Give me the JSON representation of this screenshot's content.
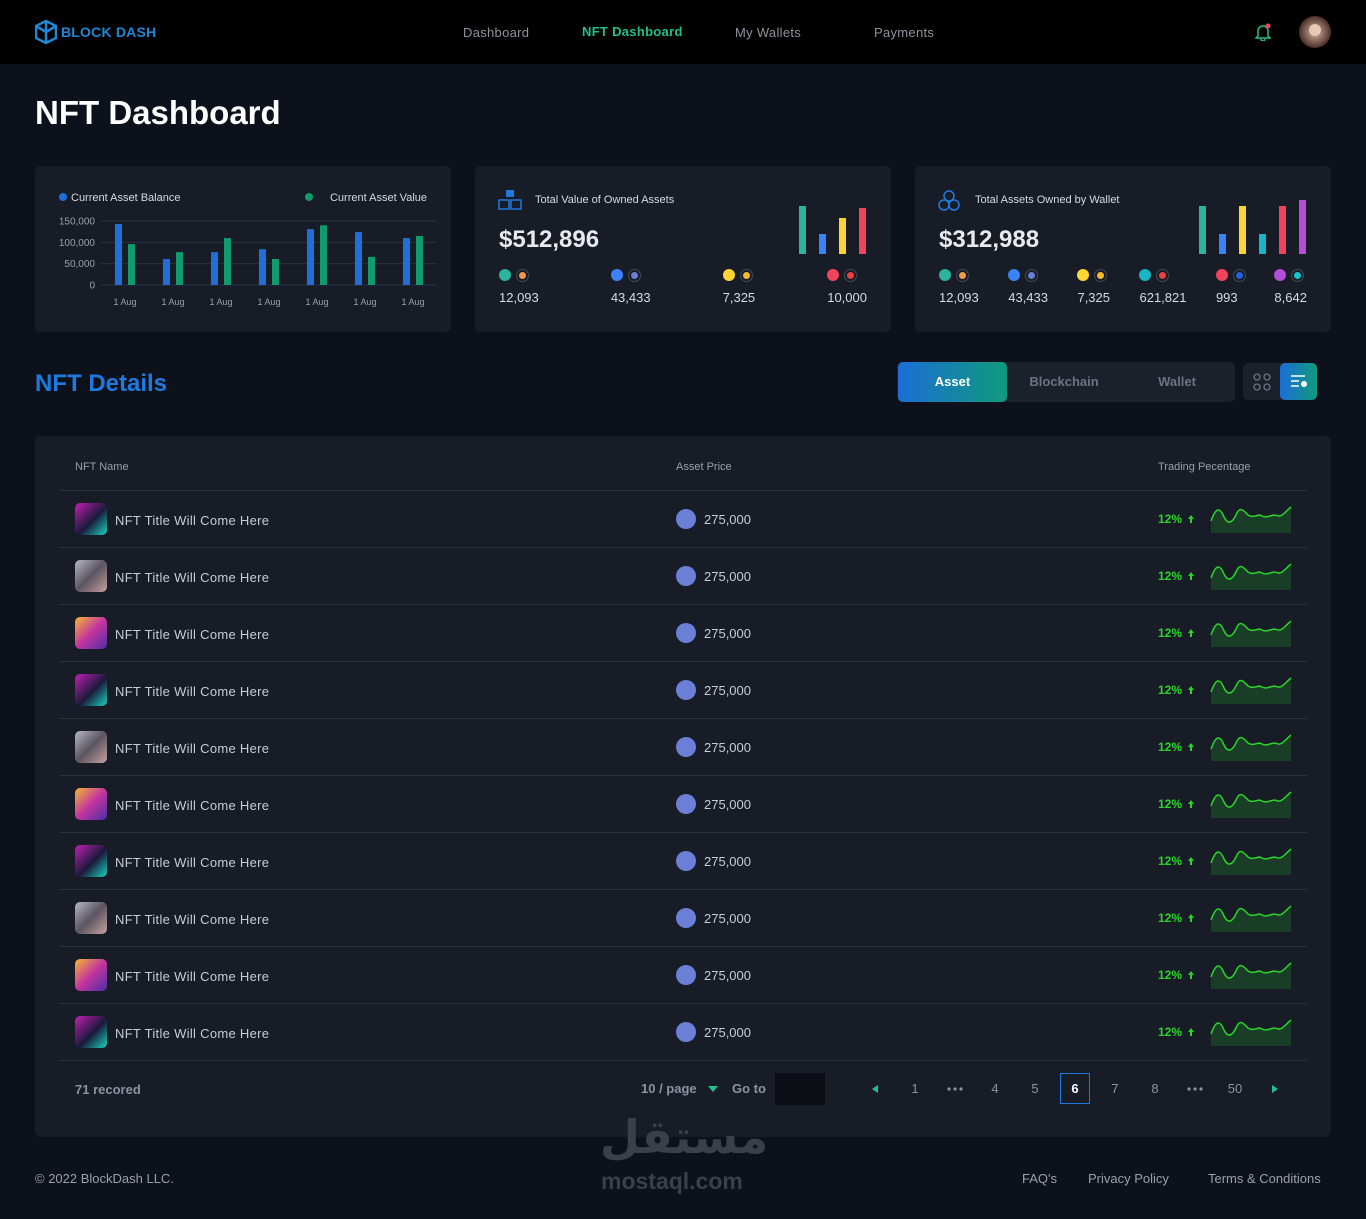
{
  "nav": {
    "brand": "BLOCK DASH",
    "links": [
      "Dashboard",
      "NFT Dashboard",
      "My Wallets",
      "Payments"
    ],
    "active": "NFT Dashboard"
  },
  "page_title": "NFT Dashboard",
  "chart_data": {
    "type": "bar",
    "categories": [
      "1 Aug",
      "1 Aug",
      "1 Aug",
      "1 Aug",
      "1 Aug",
      "1 Aug",
      "1 Aug"
    ],
    "series": [
      {
        "name": "Current Asset Balance",
        "color": "#1f6fd6",
        "values": [
          143000,
          61000,
          77000,
          84000,
          131000,
          124000,
          110000
        ]
      },
      {
        "name": "Current Asset Value",
        "color": "#0f9b6c",
        "values": [
          96000,
          77000,
          110000,
          61000,
          140000,
          66000,
          115000
        ]
      }
    ],
    "ylim": [
      0,
      150000
    ],
    "yticks": [
      0,
      {
        "value": 50000,
        "label": "50,000"
      },
      {
        "value": 100000,
        "label": "100,000"
      },
      {
        "value": 150000,
        "label": "150,000"
      }
    ],
    "grid": true
  },
  "cards": [
    {
      "title": "Total Value of Owned Assets",
      "amount": "$512,896",
      "coins": [
        {
          "color": "#2bb39e",
          "value": "12,093"
        },
        {
          "color": "#3b82f6",
          "value": "43,433"
        },
        {
          "color": "#fcd535",
          "value": "7,325"
        },
        {
          "color": "#f0445d",
          "value": "10,000"
        }
      ]
    },
    {
      "title": "Total Assets Owned by Wallet",
      "amount": "$312,988",
      "coins": [
        {
          "color": "#2bb39e",
          "value": "12,093"
        },
        {
          "color": "#3b82f6",
          "value": "43,433"
        },
        {
          "color": "#fcd535",
          "value": "7,325"
        },
        {
          "color": "#17b5c6",
          "value": "621,821"
        },
        {
          "color": "#f0445d",
          "value": "993"
        },
        {
          "color": "#b24fd6",
          "value": "8,642"
        }
      ]
    }
  ],
  "details": {
    "title": "NFT Details",
    "tabs": [
      "Asset",
      "Blockchain",
      "Wallet"
    ],
    "active_tab": "Asset"
  },
  "table": {
    "columns": [
      "NFT Name",
      "Asset Price",
      "Trading Pecentage"
    ],
    "rows": [
      [
        "NFT Title Will Come Here",
        "275,000",
        "12%"
      ],
      [
        "NFT Title Will Come Here",
        "275,000",
        "12%"
      ],
      [
        "NFT Title Will Come Here",
        "275,000",
        "12%"
      ],
      [
        "NFT Title Will Come Here",
        "275,000",
        "12%"
      ],
      [
        "NFT Title Will Come Here",
        "275,000",
        "12%"
      ],
      [
        "NFT Title Will Come Here",
        "275,000",
        "12%"
      ],
      [
        "NFT Title Will Come Here",
        "275,000",
        "12%"
      ],
      [
        "NFT Title Will Come Here",
        "275,000",
        "12%"
      ],
      [
        "NFT Title Will Come Here",
        "275,000",
        "12%"
      ],
      [
        "NFT Title Will Come Here",
        "275,000",
        "12%"
      ]
    ]
  },
  "pagination": {
    "records": "71 recored",
    "page_size": "10 / page",
    "goto": "Go to",
    "pages": [
      1,
      4,
      5,
      6,
      7,
      8,
      50
    ],
    "current_page": 6
  },
  "footer": {
    "copyright": "© 2022 BlockDash LLC.",
    "links": [
      "FAQ's",
      "Privacy Policy",
      "Terms & Conditions"
    ]
  },
  "watermark": {
    "arabic": "مستقل",
    "latin": "mostaql.com"
  }
}
